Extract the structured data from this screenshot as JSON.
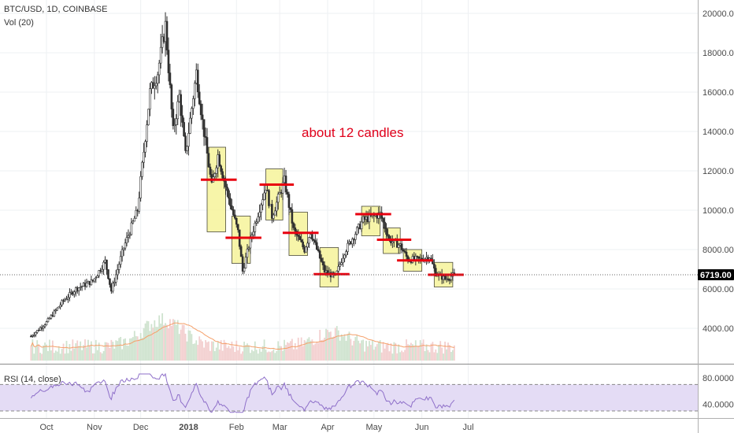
{
  "header": {
    "symbol_line": "BTC/USD, 1D, COINBASE",
    "volume_label": "Vol (20)",
    "rsi_label": "RSI (14, close)"
  },
  "annotation": {
    "text": "about 12 candles"
  },
  "chart_data": {
    "type": "candlestick",
    "price_axis": {
      "ticks": [
        4000,
        6000,
        8000,
        10000,
        12000,
        14000,
        16000,
        18000,
        20000
      ],
      "tick_labels": [
        "4000.00",
        "6000.00",
        "8000.00",
        "10000.00",
        "12000.00",
        "14000.00",
        "16000.00",
        "18000.00",
        "20000.00"
      ],
      "last_price": 6719.0,
      "last_price_label": "6719.00",
      "last_price_color": "#000000"
    },
    "time_axis": {
      "labels": [
        "Oct",
        "Nov",
        "Dec",
        "2018",
        "Feb",
        "Mar",
        "Apr",
        "May",
        "Jun",
        "Jul"
      ],
      "bold_label": "2018"
    },
    "rsi_axis": {
      "ticks": [
        40,
        80
      ],
      "tick_labels": [
        "40.0000",
        "80.0000"
      ]
    },
    "consolidation_boxes": [
      {
        "start": "2018-01-13",
        "end": "2018-01-25",
        "low": 8900,
        "high": 13200,
        "level": 11550
      },
      {
        "start": "2018-01-29",
        "end": "2018-02-10",
        "low": 7300,
        "high": 9700,
        "level": 8600
      },
      {
        "start": "2018-02-20",
        "end": "2018-03-03",
        "low": 9500,
        "high": 12100,
        "level": 11300
      },
      {
        "start": "2018-03-07",
        "end": "2018-03-19",
        "low": 7700,
        "high": 9900,
        "level": 8850
      },
      {
        "start": "2018-03-27",
        "end": "2018-04-08",
        "low": 6100,
        "high": 8100,
        "level": 6750
      },
      {
        "start": "2018-04-23",
        "end": "2018-05-05",
        "low": 8700,
        "high": 10200,
        "level": 9800
      },
      {
        "start": "2018-05-07",
        "end": "2018-05-18",
        "low": 7800,
        "high": 9100,
        "level": 8500
      },
      {
        "start": "2018-05-20",
        "end": "2018-06-01",
        "low": 6900,
        "high": 8000,
        "level": 7450
      },
      {
        "start": "2018-06-09",
        "end": "2018-06-21",
        "low": 6100,
        "high": 7350,
        "level": 6719
      }
    ],
    "box_fill": "#f6f39a",
    "level_color": "#e8000f",
    "up_color": "#2e2e2e",
    "down_color": "#2e2e2e",
    "volume_ma_color": "#f5a06a",
    "rsi_band_color": "#e4dcf5",
    "rsi_line_color": "#8e6fc9"
  }
}
